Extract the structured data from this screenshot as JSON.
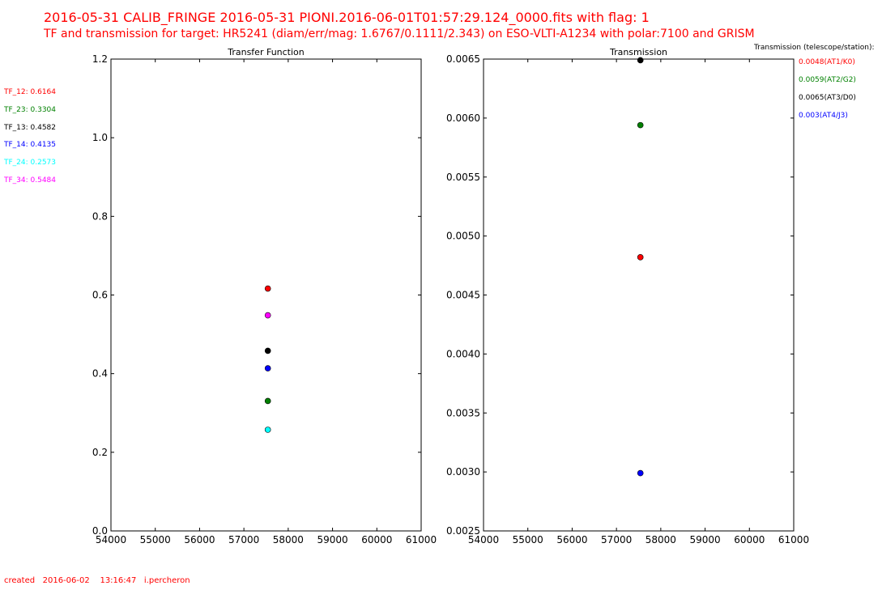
{
  "header": {
    "title_line1": "2016-05-31 CALIB_FRINGE 2016-05-31   PIONI.2016-06-01T01:57:29.124_0000.fits with flag: 1",
    "title_line2": "TF and transmission for target: HR5241 (diam/err/mag: 1.6767/0.1111/2.343) on ESO-VLTI-A1234 with polar:7100 and GRISM"
  },
  "footer": {
    "text": "created   2016-06-02    13:16:47   i.percheron"
  },
  "tf_legend": [
    {
      "label": "TF_12: 0.6164",
      "color": "#ff0000"
    },
    {
      "label": "TF_23: 0.3304",
      "color": "#008000"
    },
    {
      "label": "TF_13: 0.4582",
      "color": "#000000"
    },
    {
      "label": "TF_14: 0.4135",
      "color": "#0000ff"
    },
    {
      "label": "TF_24: 0.2573",
      "color": "#00ffff"
    },
    {
      "label": "TF_34: 0.5484",
      "color": "#ff00ff"
    }
  ],
  "tr_legend": {
    "header": "Transmission (telescope/station):",
    "items": [
      {
        "label": "0.0048(AT1/K0)",
        "color": "#ff0000"
      },
      {
        "label": "0.0059(AT2/G2)",
        "color": "#008000"
      },
      {
        "label": "0.0065(AT3/D0)",
        "color": "#000000"
      },
      {
        "label": "0.003(AT4/J3)",
        "color": "#0000ff"
      }
    ]
  },
  "chart_data": [
    {
      "type": "scatter",
      "title": "Transfer Function",
      "xlim": [
        54000,
        61000
      ],
      "ylim": [
        0.0,
        1.2
      ],
      "xticks": [
        "54000",
        "55000",
        "56000",
        "57000",
        "58000",
        "59000",
        "60000",
        "61000"
      ],
      "yticks": [
        "0.0",
        "0.2",
        "0.4",
        "0.6",
        "0.8",
        "1.0",
        "1.2"
      ],
      "series": [
        {
          "color": "#ff0000",
          "points": [
            [
              57540,
              0.6164
            ]
          ]
        },
        {
          "color": "#008000",
          "points": [
            [
              57540,
              0.3304
            ]
          ]
        },
        {
          "color": "#000000",
          "points": [
            [
              57540,
              0.4582
            ]
          ]
        },
        {
          "color": "#0000ff",
          "points": [
            [
              57540,
              0.4135
            ]
          ]
        },
        {
          "color": "#00ffff",
          "points": [
            [
              57540,
              0.2573
            ]
          ]
        },
        {
          "color": "#ff00ff",
          "points": [
            [
              57540,
              0.5484
            ]
          ]
        }
      ]
    },
    {
      "type": "scatter",
      "title": "Transmission",
      "xlim": [
        54000,
        61000
      ],
      "ylim": [
        0.0025,
        0.0065
      ],
      "xticks": [
        "54000",
        "55000",
        "56000",
        "57000",
        "58000",
        "59000",
        "60000",
        "61000"
      ],
      "yticks": [
        "0.0025",
        "0.0030",
        "0.0035",
        "0.0040",
        "0.0045",
        "0.0050",
        "0.0055",
        "0.0060",
        "0.0065"
      ],
      "series": [
        {
          "color": "#ff0000",
          "points": [
            [
              57540,
              0.00482
            ]
          ]
        },
        {
          "color": "#008000",
          "points": [
            [
              57540,
              0.00594
            ]
          ]
        },
        {
          "color": "#000000",
          "points": [
            [
              57540,
              0.00649
            ]
          ]
        },
        {
          "color": "#0000ff",
          "points": [
            [
              57540,
              0.00299
            ]
          ]
        }
      ]
    }
  ]
}
